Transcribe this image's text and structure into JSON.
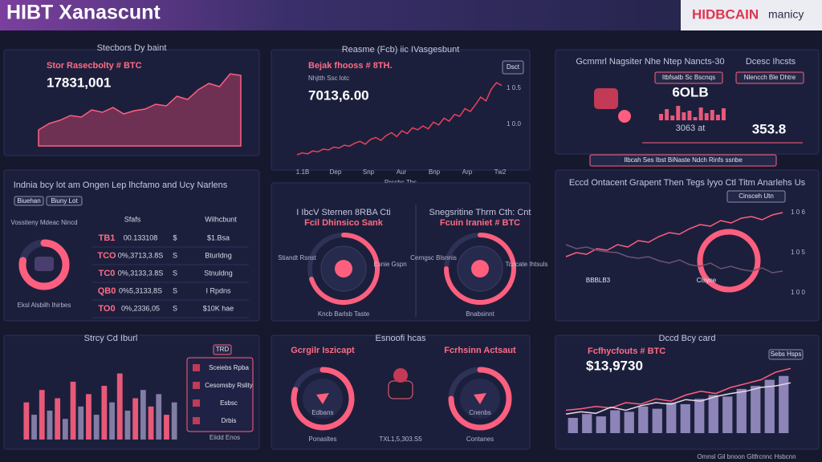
{
  "header": {
    "title": "HIBT Xanascunt",
    "brand": "HIDBCAIN",
    "suffix": "manicy"
  },
  "price_panel": {
    "title": "Stecbors Dy baint",
    "label": "Stor Rasecbolty # BTC",
    "value": "17831,001",
    "chart": {
      "type": "area",
      "color": "#ff5f7e",
      "ylim": [
        0,
        100
      ],
      "values": [
        20,
        28,
        32,
        38,
        36,
        45,
        42,
        48,
        40,
        44,
        46,
        52,
        50,
        62,
        58,
        70,
        78,
        74,
        90,
        88
      ]
    }
  },
  "trend_panel": {
    "title": "Reasme (Fcb) iic IVasgesbunt",
    "label": "Bejak fhooss # 8TH.",
    "sublabel": "Nhjtth Ssc lotc",
    "value": "7013,6.00",
    "tag": "Dsct",
    "axis_labels": [
      "1 0.5",
      "1 0.0"
    ],
    "x_labels": [
      "1.1B",
      "Dep",
      "Snp",
      "Aur",
      "Bnp",
      "Arp",
      "Tw2"
    ],
    "caption": "Rrssbc Tbs",
    "chart": {
      "type": "line",
      "color": "#e8435a",
      "ylim": [
        0,
        100
      ],
      "values": [
        10,
        12,
        11,
        14,
        13,
        16,
        15,
        18,
        17,
        20,
        19,
        22,
        24,
        21,
        26,
        28,
        25,
        30,
        33,
        29,
        35,
        32,
        38,
        36,
        40,
        37,
        44,
        41,
        48,
        45,
        52,
        50,
        58,
        55,
        62,
        70,
        66,
        78,
        85,
        82
      ]
    }
  },
  "network_panel": {
    "title": "Gcmmrl Nagsiter Nhe Ntep Nancts-30",
    "title2": "Dcesc Ihcsts",
    "tags": [
      "Itbfsatb Sc Bscnqs",
      "Nlencch Ble Dhtre"
    ],
    "values": [
      "6OLB",
      "3063 at",
      "353.8"
    ],
    "footer": "Ilbcah Ses Ibst BiNaste Ndch Rinfs ssnbe",
    "chart": {
      "type": "bar",
      "color": "#ff5f7e",
      "ylim": [
        0,
        100
      ],
      "values": [
        40,
        70,
        30,
        90,
        50,
        60,
        20,
        80,
        45,
        65,
        35,
        75
      ]
    }
  },
  "table_panel": {
    "title": "Indnia bcy lot am Ongen Lep lhcfamo and Ucy Narlens",
    "chips": [
      "Biuehan",
      "Biuny Lot"
    ],
    "columns": [
      "Sfafs",
      "Wilhcbunt"
    ],
    "rows": [
      [
        "TB1",
        "00.133108",
        "$",
        "$1.Bsa"
      ],
      [
        "TCO",
        "0%,3713,3.8S",
        "S",
        "Bturldng"
      ],
      [
        "TC0",
        "0%,3133,3.8S",
        "S",
        "Stnuldng"
      ],
      [
        "QB0",
        "0%5,3133,8S",
        "S",
        "I Rpdns"
      ],
      [
        "TO0",
        "0%,2336,05",
        "S",
        "$10K hae"
      ]
    ],
    "donut_title": "Vossiteny Mdeac Nincd",
    "caption": "Eksl Alsbilh Ihirbes",
    "donut": {
      "type": "ring",
      "color": "#ff5f7e",
      "lim": [
        0,
        100
      ],
      "value": 78
    }
  },
  "gauge_panel": {
    "left": {
      "title": "I IbcV Sternen 8RBA Cti",
      "label": "Fcil Dhinsico Sank",
      "side": [
        "Stiandt Rsnst",
        "Esnie Gspn"
      ],
      "caption": "Kncb Barlsb Taste",
      "gauge": {
        "type": "ring",
        "color": "#ff5f7e",
        "lim": [
          0,
          100
        ],
        "value": 70
      }
    },
    "right": {
      "title": "Snegsritine Thrm Cth: Cnt",
      "label": "Fcuin Iraniet # BTC",
      "side": [
        "Cerngsc Blsnnis",
        "Tcdcate Ihtsuls"
      ],
      "caption": "Bnabsinnt",
      "gauge": {
        "type": "ring",
        "color": "#ff5f7e",
        "lim": [
          0,
          100
        ],
        "value": 75
      }
    }
  },
  "market_panel": {
    "title": "Eccd Ontacent Grapent Then Tegs lyyo Ctl Titm Anarlehs Us",
    "tag": "Cinsceh Utn",
    "axis_labels": [
      "1 0 6",
      "1 0 5",
      "1 0 0"
    ],
    "notes": [
      "BBBLB3",
      "Clsyne"
    ],
    "chart": {
      "type": "line",
      "ylim": [
        0,
        100
      ],
      "series": [
        {
          "color": "#ff5f7e",
          "values": [
            30,
            35,
            33,
            40,
            38,
            45,
            42,
            50,
            48,
            55,
            60,
            58,
            65,
            70,
            68,
            75,
            72,
            78,
            80,
            76,
            82,
            85
          ]
        },
        {
          "color": "#6a5470",
          "values": [
            45,
            40,
            42,
            38,
            36,
            35,
            30,
            28,
            30,
            25,
            22,
            26,
            20,
            18,
            22,
            15,
            18,
            14,
            12,
            16,
            10,
            12
          ]
        }
      ]
    }
  },
  "volume_panel": {
    "title": "Strcy Cd Iburl",
    "tag": "TRD",
    "legend": [
      "Sceiebs Rpba",
      "Cesomsby Rslity",
      "Esbsc",
      "Drbis"
    ],
    "caption": "Eiidd Enos",
    "chart": {
      "type": "bar",
      "colors": [
        "#ff5f7e",
        "#8f86b0"
      ],
      "ylim": [
        0,
        100
      ],
      "values": [
        45,
        30,
        60,
        35,
        50,
        25,
        70,
        40,
        55,
        30,
        65,
        45,
        80,
        35,
        50,
        60,
        40,
        55,
        30,
        45
      ]
    }
  },
  "ring_panel": {
    "title": "Esnoofi hcas",
    "center": "TXL1,5,303.S5",
    "left": {
      "title": "Gcrgilr Iszicapt",
      "label": "Edbans",
      "caption": "Ponasltes",
      "ring": {
        "type": "ring",
        "color": "#ff5f7e",
        "lim": [
          0,
          100
        ],
        "value": 80
      }
    },
    "right": {
      "title": "Fcrhsinn Actsaut",
      "label": "Cnenbs",
      "caption": "Contanes",
      "ring": {
        "type": "ring",
        "color": "#ff5f7e",
        "lim": [
          0,
          100
        ],
        "value": 75
      }
    }
  },
  "summary_panel": {
    "title": "Dccd Bcy card",
    "label": "Fcfhycfouts # BTC",
    "value": "$13,9730",
    "tag": "Sebs Hsps",
    "footer": "Omnsl Gil bnoon Gltfrcnnc Hsbcnn",
    "chart": {
      "type": "bar",
      "color": "#9a8fc4",
      "ylim": [
        0,
        100
      ],
      "values": [
        20,
        25,
        22,
        30,
        28,
        35,
        32,
        40,
        38,
        45,
        50,
        48,
        58,
        62,
        70,
        75
      ],
      "series": [
        {
          "color": "#ff5f7e",
          "values": [
            30,
            32,
            35,
            33,
            40,
            38,
            45,
            42,
            50,
            55,
            52,
            60,
            65,
            70,
            80,
            85
          ]
        },
        {
          "color": "#e8d6e6",
          "values": [
            25,
            28,
            26,
            34,
            30,
            36,
            40,
            38,
            44,
            42,
            48,
            52,
            55,
            60,
            62,
            66
          ]
        }
      ]
    }
  }
}
